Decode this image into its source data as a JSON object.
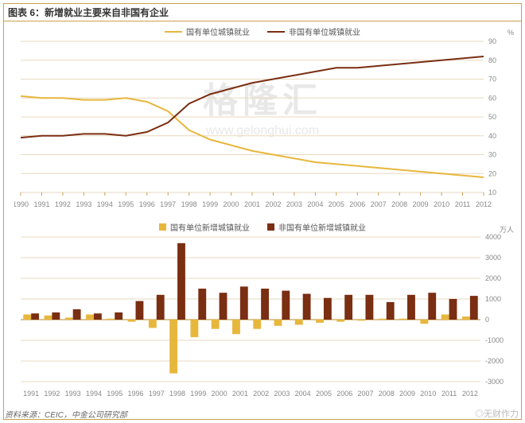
{
  "title": "图表 6：新增就业主要来自非国有企业",
  "source": "资料来源：CEIC，中金公司研究部",
  "watermark_big": "格隆汇",
  "watermark_url": "www.gelonghui.com",
  "watermark_right": "◎无财作力",
  "line_chart": {
    "type": "line",
    "y_unit": "%",
    "x_years": [
      1990,
      1991,
      1992,
      1993,
      1994,
      1995,
      1996,
      1997,
      1998,
      1999,
      2000,
      2001,
      2002,
      2003,
      2004,
      2005,
      2006,
      2007,
      2008,
      2009,
      2010,
      2011,
      2012
    ],
    "ylim": [
      10,
      90
    ],
    "ytick_step": 10,
    "grid_color": "#e7d9bf",
    "axis_color": "#c8a050",
    "tick_font_size": 9,
    "legend": {
      "a": "国有单位城镇就业",
      "b": "非国有单位城镇就业"
    },
    "series": {
      "state": {
        "color": "#e7b73d",
        "width": 2,
        "values": [
          61,
          60,
          60,
          59,
          59,
          60,
          58,
          53,
          43,
          38,
          35,
          32,
          30,
          28,
          26,
          25,
          24,
          23,
          22,
          21,
          20,
          19,
          18
        ]
      },
      "nonstate": {
        "color": "#7a2e12",
        "width": 2,
        "values": [
          39,
          40,
          40,
          41,
          41,
          40,
          42,
          47,
          57,
          62,
          65,
          68,
          70,
          72,
          74,
          76,
          76,
          77,
          78,
          79,
          80,
          81,
          82
        ]
      }
    }
  },
  "bar_chart": {
    "type": "bar",
    "y_unit": "万人",
    "x_years": [
      1991,
      1992,
      1993,
      1994,
      1995,
      1996,
      1997,
      1998,
      1999,
      2000,
      2001,
      2002,
      2003,
      2004,
      2005,
      2006,
      2007,
      2008,
      2009,
      2010,
      2011,
      2012
    ],
    "ylim": [
      -3000,
      4000
    ],
    "yticks": [
      -3000,
      -2000,
      -1000,
      0,
      1000,
      2000,
      3000,
      4000
    ],
    "grid_color": "#e7d9bf",
    "axis_color": "#c8a050",
    "tick_font_size": 9,
    "bar_group_gap": 0.25,
    "legend": {
      "a": "国有单位新增城镇就业",
      "b": "非国有单位新增城镇就业"
    },
    "series": {
      "state": {
        "color": "#e7b73d",
        "values": [
          250,
          200,
          100,
          250,
          50,
          -100,
          -400,
          -2600,
          -850,
          -450,
          -700,
          -450,
          -300,
          -250,
          -150,
          -100,
          -50,
          50,
          50,
          -200,
          250,
          150
        ]
      },
      "nonstate": {
        "color": "#7a2e12",
        "values": [
          300,
          350,
          500,
          300,
          350,
          900,
          1200,
          3700,
          1500,
          1300,
          1600,
          1500,
          1400,
          1250,
          1050,
          1200,
          1200,
          850,
          1200,
          1300,
          1000,
          1150
        ]
      }
    }
  }
}
